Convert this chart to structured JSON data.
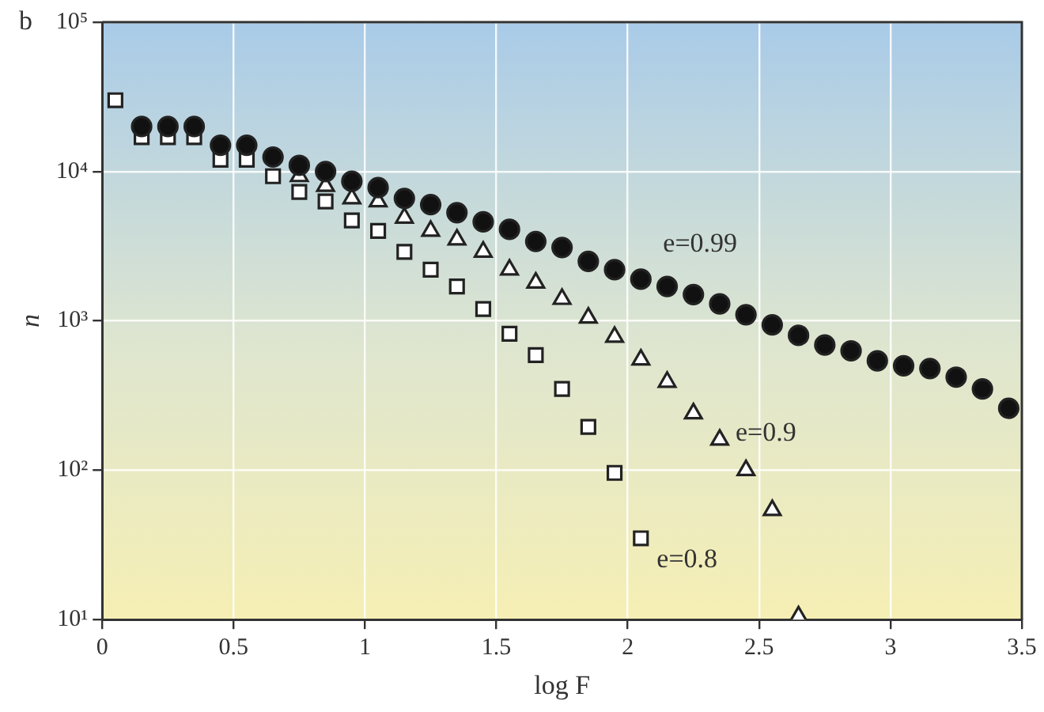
{
  "chart_data": {
    "type": "scatter",
    "xlabel": "log F",
    "ylabel": "n",
    "log": "y",
    "grid": true,
    "legend": false,
    "xlim": [
      0,
      3.5
    ],
    "xticks": [
      0,
      0.5,
      1,
      1.5,
      2,
      2.5,
      3,
      3.5
    ],
    "ylim": [
      10,
      100000
    ],
    "yticks": [
      {
        "value": 10,
        "label": "10¹"
      },
      {
        "value": 100,
        "label": "10²"
      },
      {
        "value": 1000,
        "label": "10³"
      },
      {
        "value": 10000,
        "label": "10⁴"
      },
      {
        "value": 100000,
        "label": "10⁵"
      }
    ],
    "annotations": [
      "b"
    ],
    "series": [
      {
        "name": "e=0.99",
        "color": "#111111",
        "marker": "circle",
        "x": [
          0.15,
          0.25,
          0.35,
          0.45,
          0.55,
          0.65,
          0.75,
          0.85,
          0.95,
          1.05,
          1.15,
          1.25,
          1.35,
          1.45,
          1.55,
          1.65,
          1.75,
          1.85,
          1.95,
          2.05,
          2.15,
          2.25,
          2.35,
          2.45,
          2.55,
          2.65,
          2.75,
          2.85,
          2.95,
          3.05,
          3.15,
          3.25,
          3.35,
          3.45
        ],
        "values": [
          20000,
          20000,
          20000,
          15000,
          15000,
          12500,
          11000,
          10000,
          8600,
          7800,
          6600,
          6000,
          5300,
          4600,
          4100,
          3400,
          3100,
          2500,
          2200,
          1900,
          1700,
          1500,
          1300,
          1100,
          940,
          800,
          690,
          630,
          540,
          500,
          480,
          420,
          350,
          260
        ]
      },
      {
        "name": "e=0.9",
        "color": "#ffffff",
        "marker": "triangle",
        "x": [
          0.75,
          0.85,
          0.95,
          1.05,
          1.15,
          1.25,
          1.35,
          1.45,
          1.55,
          1.65,
          1.75,
          1.85,
          1.95,
          2.05,
          2.15,
          2.25,
          2.35,
          2.45,
          2.55,
          2.65
        ],
        "values": [
          9300,
          8000,
          6600,
          6300,
          4900,
          4000,
          3500,
          2900,
          2200,
          1800,
          1400,
          1050,
          780,
          550,
          390,
          240,
          160,
          100,
          54,
          10.5
        ]
      },
      {
        "name": "e=0.8",
        "color": "#ffffff",
        "marker": "square",
        "x": [
          0.05,
          0.15,
          0.25,
          0.35,
          0.45,
          0.55,
          0.65,
          0.75,
          0.85,
          0.95,
          1.05,
          1.15,
          1.25,
          1.35,
          1.45,
          1.55,
          1.65,
          1.75,
          1.85,
          1.95,
          2.05
        ],
        "values": [
          30000,
          17000,
          17000,
          17000,
          12000,
          12000,
          9300,
          7300,
          6300,
          4700,
          4000,
          2900,
          2200,
          1700,
          1200,
          820,
          590,
          350,
          195,
          96,
          35
        ]
      }
    ]
  }
}
